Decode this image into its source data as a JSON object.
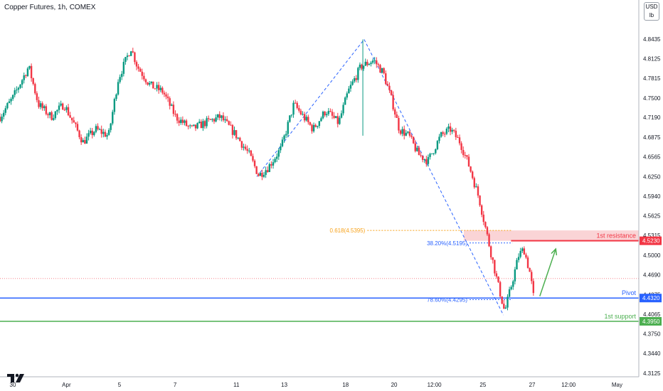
{
  "header": {
    "title": "Copper Futures, 1h, COMEX"
  },
  "unit_box": {
    "line1": "USD",
    "line2": "lb"
  },
  "logo": {
    "name": "tradingview-logo-icon"
  },
  "chart_data": {
    "type": "candlestick",
    "ylim": [
      4.3062,
      4.8847
    ],
    "y_ticks": [
      4.8435,
      4.8125,
      4.7815,
      4.75,
      4.719,
      4.6875,
      4.6565,
      4.625,
      4.594,
      4.5625,
      4.5315,
      4.5,
      4.469,
      4.4375,
      4.4065,
      4.375,
      4.344,
      4.3125
    ],
    "x_ticks": [
      {
        "label": "30",
        "pos": 0.02
      },
      {
        "label": "Apr",
        "pos": 0.104
      },
      {
        "label": "5",
        "pos": 0.187
      },
      {
        "label": "7",
        "pos": 0.274
      },
      {
        "label": "11",
        "pos": 0.37
      },
      {
        "label": "13",
        "pos": 0.445
      },
      {
        "label": "18",
        "pos": 0.541
      },
      {
        "label": "20",
        "pos": 0.617
      },
      {
        "label": "12:00",
        "pos": 0.68
      },
      {
        "label": "25",
        "pos": 0.756
      },
      {
        "label": "27",
        "pos": 0.833
      },
      {
        "label": "12:00",
        "pos": 0.89
      },
      {
        "label": "May",
        "pos": 0.966
      }
    ],
    "path": [
      [
        0.0,
        4.72
      ],
      [
        0.02,
        4.75
      ],
      [
        0.045,
        4.8
      ],
      [
        0.06,
        4.74
      ],
      [
        0.08,
        4.72
      ],
      [
        0.1,
        4.74
      ],
      [
        0.11,
        4.72
      ],
      [
        0.13,
        4.68
      ],
      [
        0.15,
        4.7
      ],
      [
        0.17,
        4.69
      ],
      [
        0.185,
        4.78
      ],
      [
        0.205,
        4.83
      ],
      [
        0.215,
        4.8
      ],
      [
        0.235,
        4.77
      ],
      [
        0.255,
        4.76
      ],
      [
        0.275,
        4.72
      ],
      [
        0.3,
        4.7
      ],
      [
        0.32,
        4.71
      ],
      [
        0.345,
        4.72
      ],
      [
        0.37,
        4.69
      ],
      [
        0.39,
        4.66
      ],
      [
        0.405,
        4.627
      ],
      [
        0.42,
        4.64
      ],
      [
        0.44,
        4.67
      ],
      [
        0.46,
        4.74
      ],
      [
        0.475,
        4.72
      ],
      [
        0.49,
        4.7
      ],
      [
        0.51,
        4.73
      ],
      [
        0.53,
        4.71
      ],
      [
        0.545,
        4.76
      ],
      [
        0.565,
        4.8
      ],
      [
        0.585,
        4.81
      ],
      [
        0.6,
        4.79
      ],
      [
        0.615,
        4.74
      ],
      [
        0.625,
        4.7
      ],
      [
        0.64,
        4.69
      ],
      [
        0.655,
        4.66
      ],
      [
        0.67,
        4.65
      ],
      [
        0.69,
        4.69
      ],
      [
        0.705,
        4.7
      ],
      [
        0.72,
        4.68
      ],
      [
        0.735,
        4.64
      ],
      [
        0.75,
        4.59
      ],
      [
        0.765,
        4.52
      ],
      [
        0.778,
        4.46
      ],
      [
        0.79,
        4.41
      ],
      [
        0.8,
        4.45
      ],
      [
        0.812,
        4.5
      ],
      [
        0.82,
        4.51
      ],
      [
        0.83,
        4.47
      ],
      [
        0.835,
        4.435
      ]
    ],
    "spikes": [
      [
        0.568,
        4.843,
        4.69
      ]
    ],
    "fib_zigzag": [
      [
        0.402,
        4.625
      ],
      [
        0.57,
        4.843
      ],
      [
        0.788,
        4.405
      ]
    ],
    "fib_levels": [
      {
        "label": "0.618(4.5395)",
        "value": 4.5395,
        "color": "#f7a21b"
      },
      {
        "label": "38.20%(4.5195)",
        "value": 4.5195,
        "color": "#2962ff"
      },
      {
        "label": "78.60%(4.4295)",
        "value": 4.4295,
        "color": "#2962ff"
      }
    ],
    "zones": [
      {
        "from": 4.523,
        "to": 4.5395,
        "color": "#f8c5c8"
      }
    ],
    "levels": [
      {
        "name": "1st resistance",
        "value": 4.523,
        "color": "#f23645",
        "tag": "4.5230"
      },
      {
        "name": "Pivot",
        "value": 4.432,
        "color": "#2962ff",
        "tag": "4.4320"
      },
      {
        "name": "1st support",
        "value": 4.395,
        "color": "#4caf50",
        "tag": "4.3950"
      }
    ],
    "last_price": 4.463,
    "arrow": {
      "from": [
        0.845,
        4.435
      ],
      "to": [
        0.87,
        4.51
      ],
      "color": "#4caf50"
    },
    "up_color": "#089981",
    "down_color": "#f23645",
    "grid": false,
    "legend": "none"
  }
}
